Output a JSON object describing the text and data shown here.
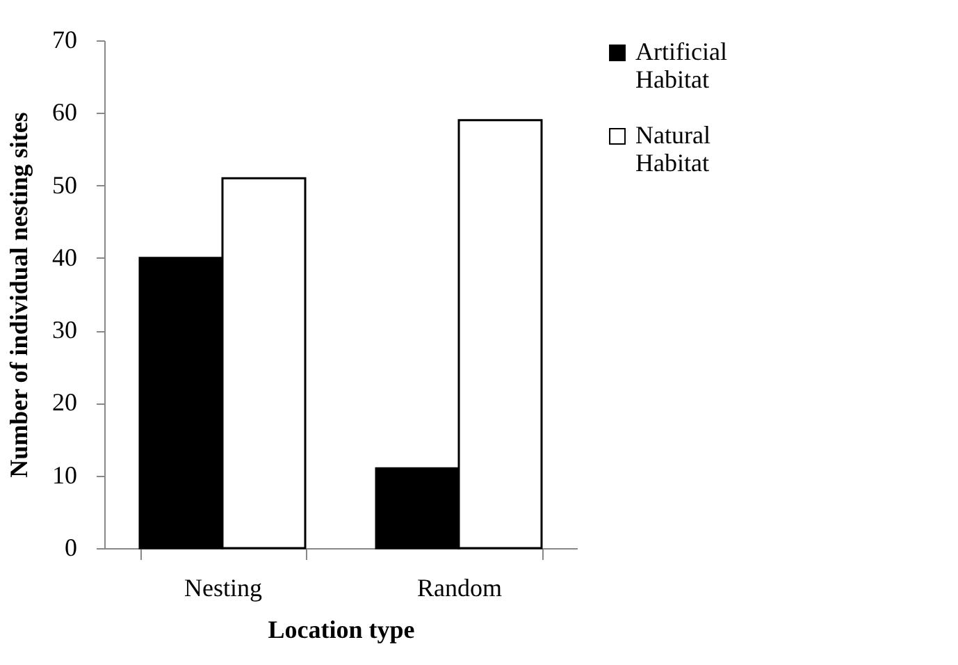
{
  "chart_data": {
    "type": "bar",
    "xlabel": "Location type",
    "ylabel": "Number of individual nesting sites",
    "categories": [
      "Nesting",
      "Random"
    ],
    "series": [
      {
        "name": "Artificial Habitat",
        "color": "#000000",
        "values": [
          40,
          11
        ]
      },
      {
        "name": "Natural Habitat",
        "color": "#ffffff",
        "values": [
          51,
          59
        ]
      }
    ],
    "ylim": [
      0,
      70
    ],
    "yticks": [
      0,
      10,
      20,
      30,
      40,
      50,
      60,
      70
    ],
    "grid": false,
    "legend": "right"
  }
}
